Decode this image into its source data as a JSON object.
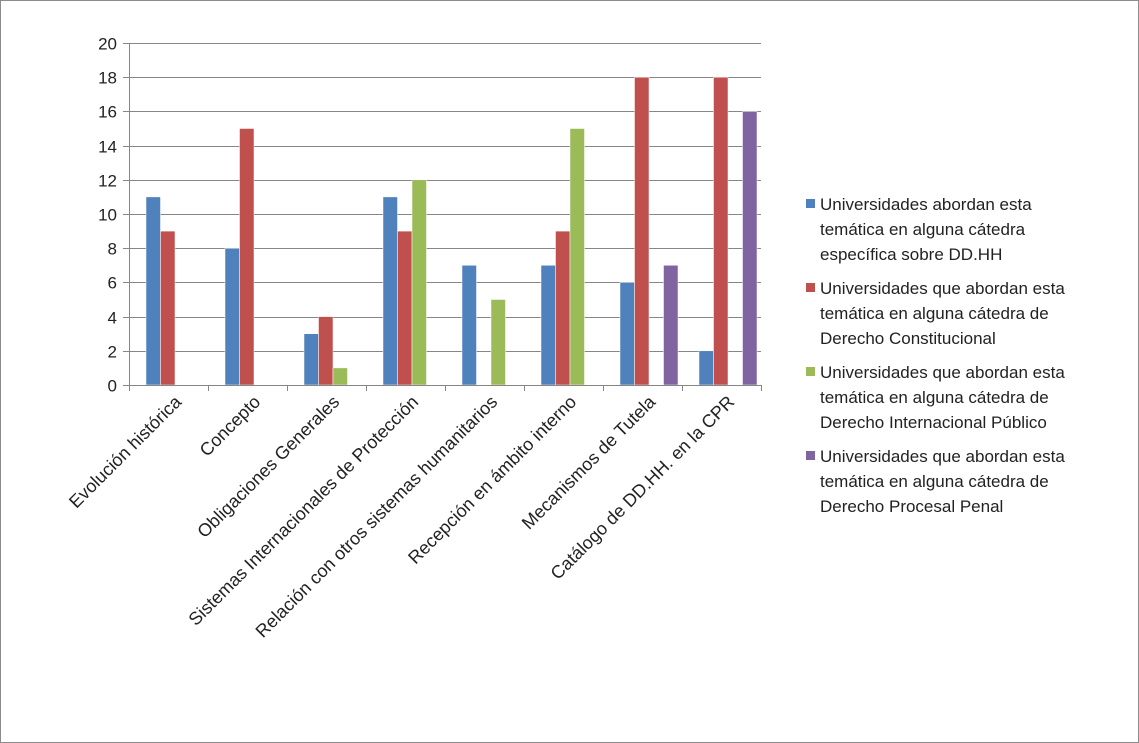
{
  "chart_data": {
    "type": "bar",
    "title": "",
    "xlabel": "",
    "ylabel": "",
    "ylim": [
      0,
      20
    ],
    "yticks": [
      0,
      2,
      4,
      6,
      8,
      10,
      12,
      14,
      16,
      18,
      20
    ],
    "grid": true,
    "legend_position": "right",
    "categories": [
      "Evolución histórica",
      "Concepto",
      "Obligaciones Generales",
      "Sistemas Internacionales de Protección",
      "Relación con otros sistemas humanitarios",
      "Recepción en ámbito interno",
      "Mecanismos de Tutela",
      "Catálogo de DD.HH. en la CPR"
    ],
    "series": [
      {
        "name": "Universidades abordan esta temática en alguna cátedra específica sobre DD.HH",
        "legend_lines": [
          "Universidades abordan esta",
          "temática en alguna cátedra",
          "específica sobre DD.HH"
        ],
        "color": "#4f81bd",
        "values": [
          11,
          8,
          3,
          11,
          7,
          7,
          6,
          2
        ]
      },
      {
        "name": "Universidades que abordan esta temática en alguna cátedra de Derecho Constitucional",
        "legend_lines": [
          "Universidades que abordan esta",
          "temática en alguna cátedra de",
          "Derecho Constitucional"
        ],
        "color": "#c0504d",
        "values": [
          9,
          15,
          4,
          9,
          null,
          9,
          18,
          18
        ]
      },
      {
        "name": "Universidades que abordan esta temática en alguna cátedra de Derecho Internacional Público",
        "legend_lines": [
          "Universidades que abordan esta",
          "temática en alguna cátedra de",
          "Derecho Internacional Público"
        ],
        "color": "#9bbb59",
        "values": [
          null,
          null,
          1,
          12,
          5,
          15,
          null,
          null
        ]
      },
      {
        "name": "Universidades que abordan esta temática en alguna  cátedra de Derecho Procesal Penal",
        "legend_lines": [
          "Universidades que abordan esta",
          "temática en alguna  cátedra de",
          "Derecho Procesal Penal"
        ],
        "color": "#8064a2",
        "values": [
          null,
          null,
          null,
          null,
          null,
          null,
          7,
          16
        ]
      }
    ]
  }
}
